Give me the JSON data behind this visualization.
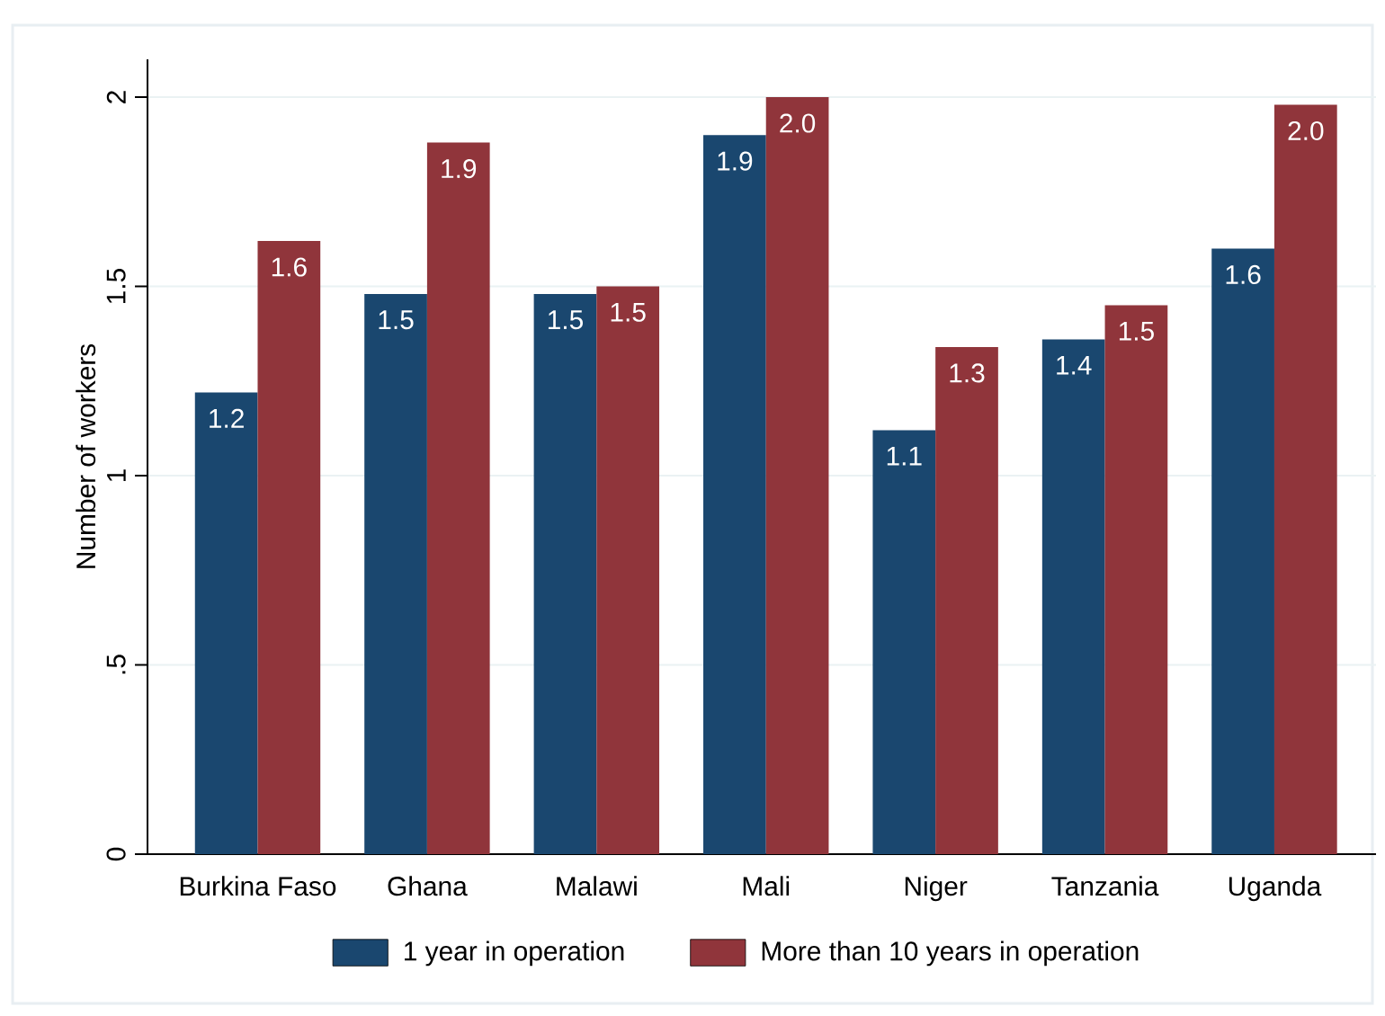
{
  "chart_data": {
    "type": "bar",
    "ylabel": "Number of workers",
    "categories": [
      "Burkina Faso",
      "Ghana",
      "Malawi",
      "Mali",
      "Niger",
      "Tanzania",
      "Uganda"
    ],
    "series": [
      {
        "name": "1 year in operation",
        "color": "#1a476f",
        "values": [
          1.22,
          1.48,
          1.48,
          1.9,
          1.12,
          1.36,
          1.6
        ],
        "value_labels": [
          "1.2",
          "1.5",
          "1.5",
          "1.9",
          "1.1",
          "1.4",
          "1.6"
        ]
      },
      {
        "name": "More than 10 years in operation",
        "color": "#90353b",
        "values": [
          1.62,
          1.88,
          1.5,
          2.0,
          1.34,
          1.45,
          1.98
        ],
        "value_labels": [
          "1.6",
          "1.9",
          "1.5",
          "2.0",
          "1.3",
          "1.5",
          "2.0"
        ]
      }
    ],
    "ylim": [
      0,
      2.1
    ],
    "yticks": [
      0,
      {
        "value": 0.5,
        "label": ".5"
      },
      1,
      1.5,
      2
    ],
    "grid": "y",
    "legend": "bottom"
  }
}
